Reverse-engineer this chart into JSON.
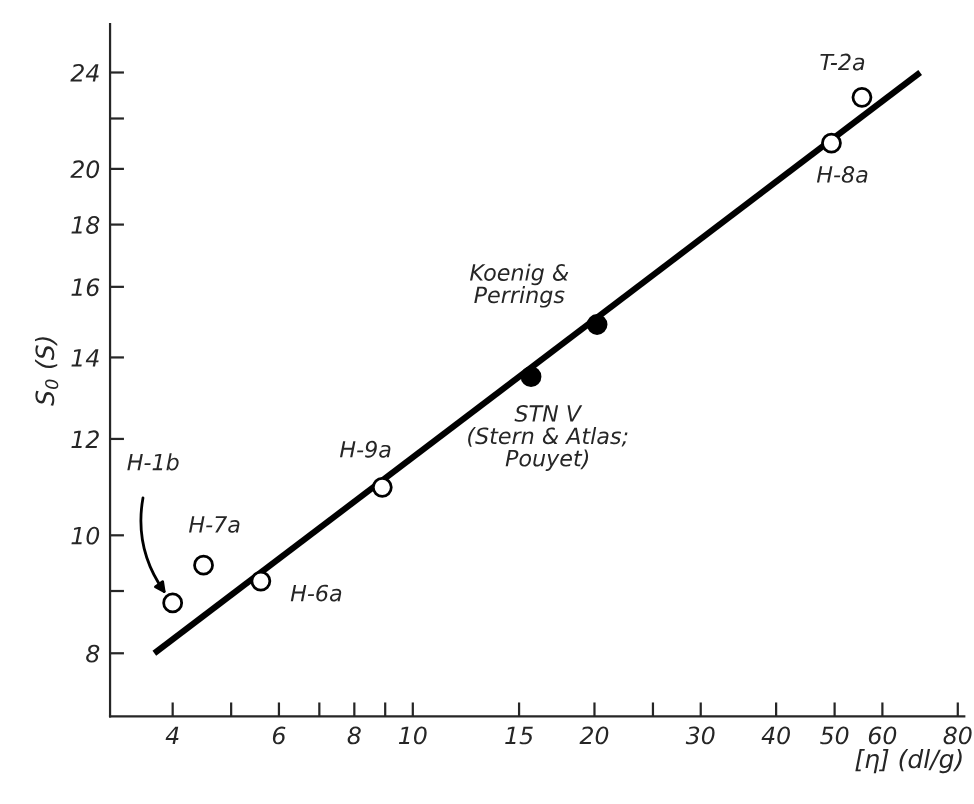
{
  "chart_data": {
    "type": "scatter",
    "xlabel": "[η] (dl/g)",
    "ylabel": "S$_{0}$ (S)",
    "log": "xy",
    "grid": false,
    "xlim": [
      3.15,
      82
    ],
    "ylim": [
      7.1,
      26.3
    ],
    "xticks": [
      4,
      {
        "value": 5,
        "label": null
      },
      6,
      {
        "value": 7,
        "label": null
      },
      8,
      {
        "value": 9,
        "label": null
      },
      10,
      15,
      20,
      {
        "value": 25,
        "label": null
      },
      30,
      40,
      50,
      60,
      80
    ],
    "yticks": [
      8,
      {
        "value": 9,
        "label": null
      },
      10,
      12,
      14,
      16,
      18,
      20,
      {
        "value": 22,
        "label": null
      },
      24
    ],
    "series": [
      {
        "color": "#ffffff",
        "marker": "circle",
        "x": [
          4.0,
          4.5,
          5.6,
          8.9,
          49.4,
          55.5
        ],
        "values": [
          8.8,
          9.45,
          9.17,
          10.95,
          21.0,
          22.9
        ]
      },
      {
        "color": "#000000",
        "marker": "circle",
        "x": [
          15.7,
          20.2
        ],
        "values": [
          13.5,
          14.9
        ]
      },
      {
        "type": "line",
        "color": "#000000",
        "marker": "none",
        "line_style": "solid",
        "x": [
          3.73,
          69.3
        ],
        "values": [
          8.0,
          24.0
        ]
      }
    ],
    "annotations": [
      {
        "text": "H-1b",
        "x": 4.0,
        "y": 8.8
      },
      {
        "text": "H-7a",
        "x": 4.5,
        "y": 9.45
      },
      {
        "text": "H-6a",
        "x": 5.6,
        "y": 9.17
      },
      {
        "text": "H-9a",
        "x": 8.9,
        "y": 10.95
      },
      {
        "text": "T-2a",
        "x": 55.5,
        "y": 22.9
      },
      {
        "text": "H-8a",
        "x": 49.4,
        "y": 21.0
      },
      {
        "text": "STN V\n(Stern & Atlas;\nPouyet)",
        "x": 15.7,
        "y": 13.5
      },
      {
        "text": "Koenig &\nPerrings",
        "x": 20.2,
        "y": 14.9
      }
    ]
  }
}
